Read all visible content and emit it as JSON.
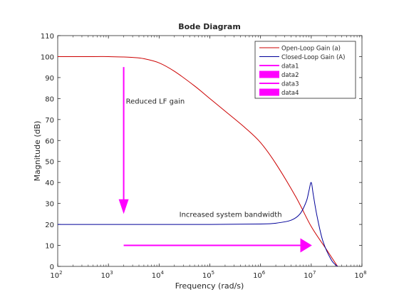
{
  "chart_data": {
    "type": "line",
    "title": "Bode Diagram",
    "xlabel": "Frequency  (rad/s)",
    "ylabel": "Magnitude (dB)",
    "xscale": "log",
    "xlim": [
      100,
      100000000
    ],
    "ylim": [
      0,
      110
    ],
    "xticks": [
      {
        "value": 100,
        "base": "10",
        "exp": "2"
      },
      {
        "value": 1000,
        "base": "10",
        "exp": "3"
      },
      {
        "value": 10000,
        "base": "10",
        "exp": "4"
      },
      {
        "value": 100000,
        "base": "10",
        "exp": "5"
      },
      {
        "value": 1000000,
        "base": "10",
        "exp": "6"
      },
      {
        "value": 10000000,
        "base": "10",
        "exp": "7"
      },
      {
        "value": 100000000,
        "base": "10",
        "exp": "8"
      }
    ],
    "yticks": [
      0,
      10,
      20,
      30,
      40,
      50,
      60,
      70,
      80,
      90,
      100,
      110
    ],
    "grid": false,
    "legend_position": "top-right",
    "series": [
      {
        "name": "Open-Loop Gain (a)",
        "color": "#cc0000",
        "x": [
          100,
          500,
          1000,
          2000,
          3000,
          5000,
          10000,
          20000,
          50000,
          100000,
          200000,
          500000,
          1000000,
          2000000,
          5000000,
          10000000,
          20000000,
          33000000
        ],
        "y": [
          100,
          100,
          100,
          99.8,
          99.6,
          99,
          97,
          93,
          86,
          80,
          74,
          66,
          59,
          49,
          33,
          19,
          8,
          0
        ]
      },
      {
        "name": "Closed-Loop Gain (A)",
        "color": "#000099",
        "x": [
          100,
          1000,
          100000,
          1000000,
          2000000,
          4000000,
          6000000,
          8000000,
          9000000,
          10000000,
          11000000,
          13000000,
          17000000,
          25000000,
          33000000
        ],
        "y": [
          20,
          20,
          20,
          20.2,
          20.6,
          22,
          25,
          31,
          36,
          40,
          34,
          24,
          12,
          3,
          0
        ]
      },
      {
        "name": "data1",
        "color": "#ff00ff",
        "x": [
          2000,
          2000
        ],
        "y": [
          95,
          31
        ]
      },
      {
        "name": "data2",
        "color": "#ff00ff",
        "x": [
          2000
        ],
        "y": [
          25
        ]
      },
      {
        "name": "data3",
        "color": "#ff00ff",
        "x": [
          2000,
          6500000
        ],
        "y": [
          10,
          10
        ]
      },
      {
        "name": "data4",
        "color": "#ff00ff",
        "x": [
          10000000
        ],
        "y": [
          10
        ]
      }
    ],
    "annotations": [
      {
        "text": "Reduced LF gain",
        "x": 2000,
        "y": 79
      },
      {
        "text": "Increased system bandwidth",
        "x": 25000,
        "y": 25
      }
    ]
  }
}
